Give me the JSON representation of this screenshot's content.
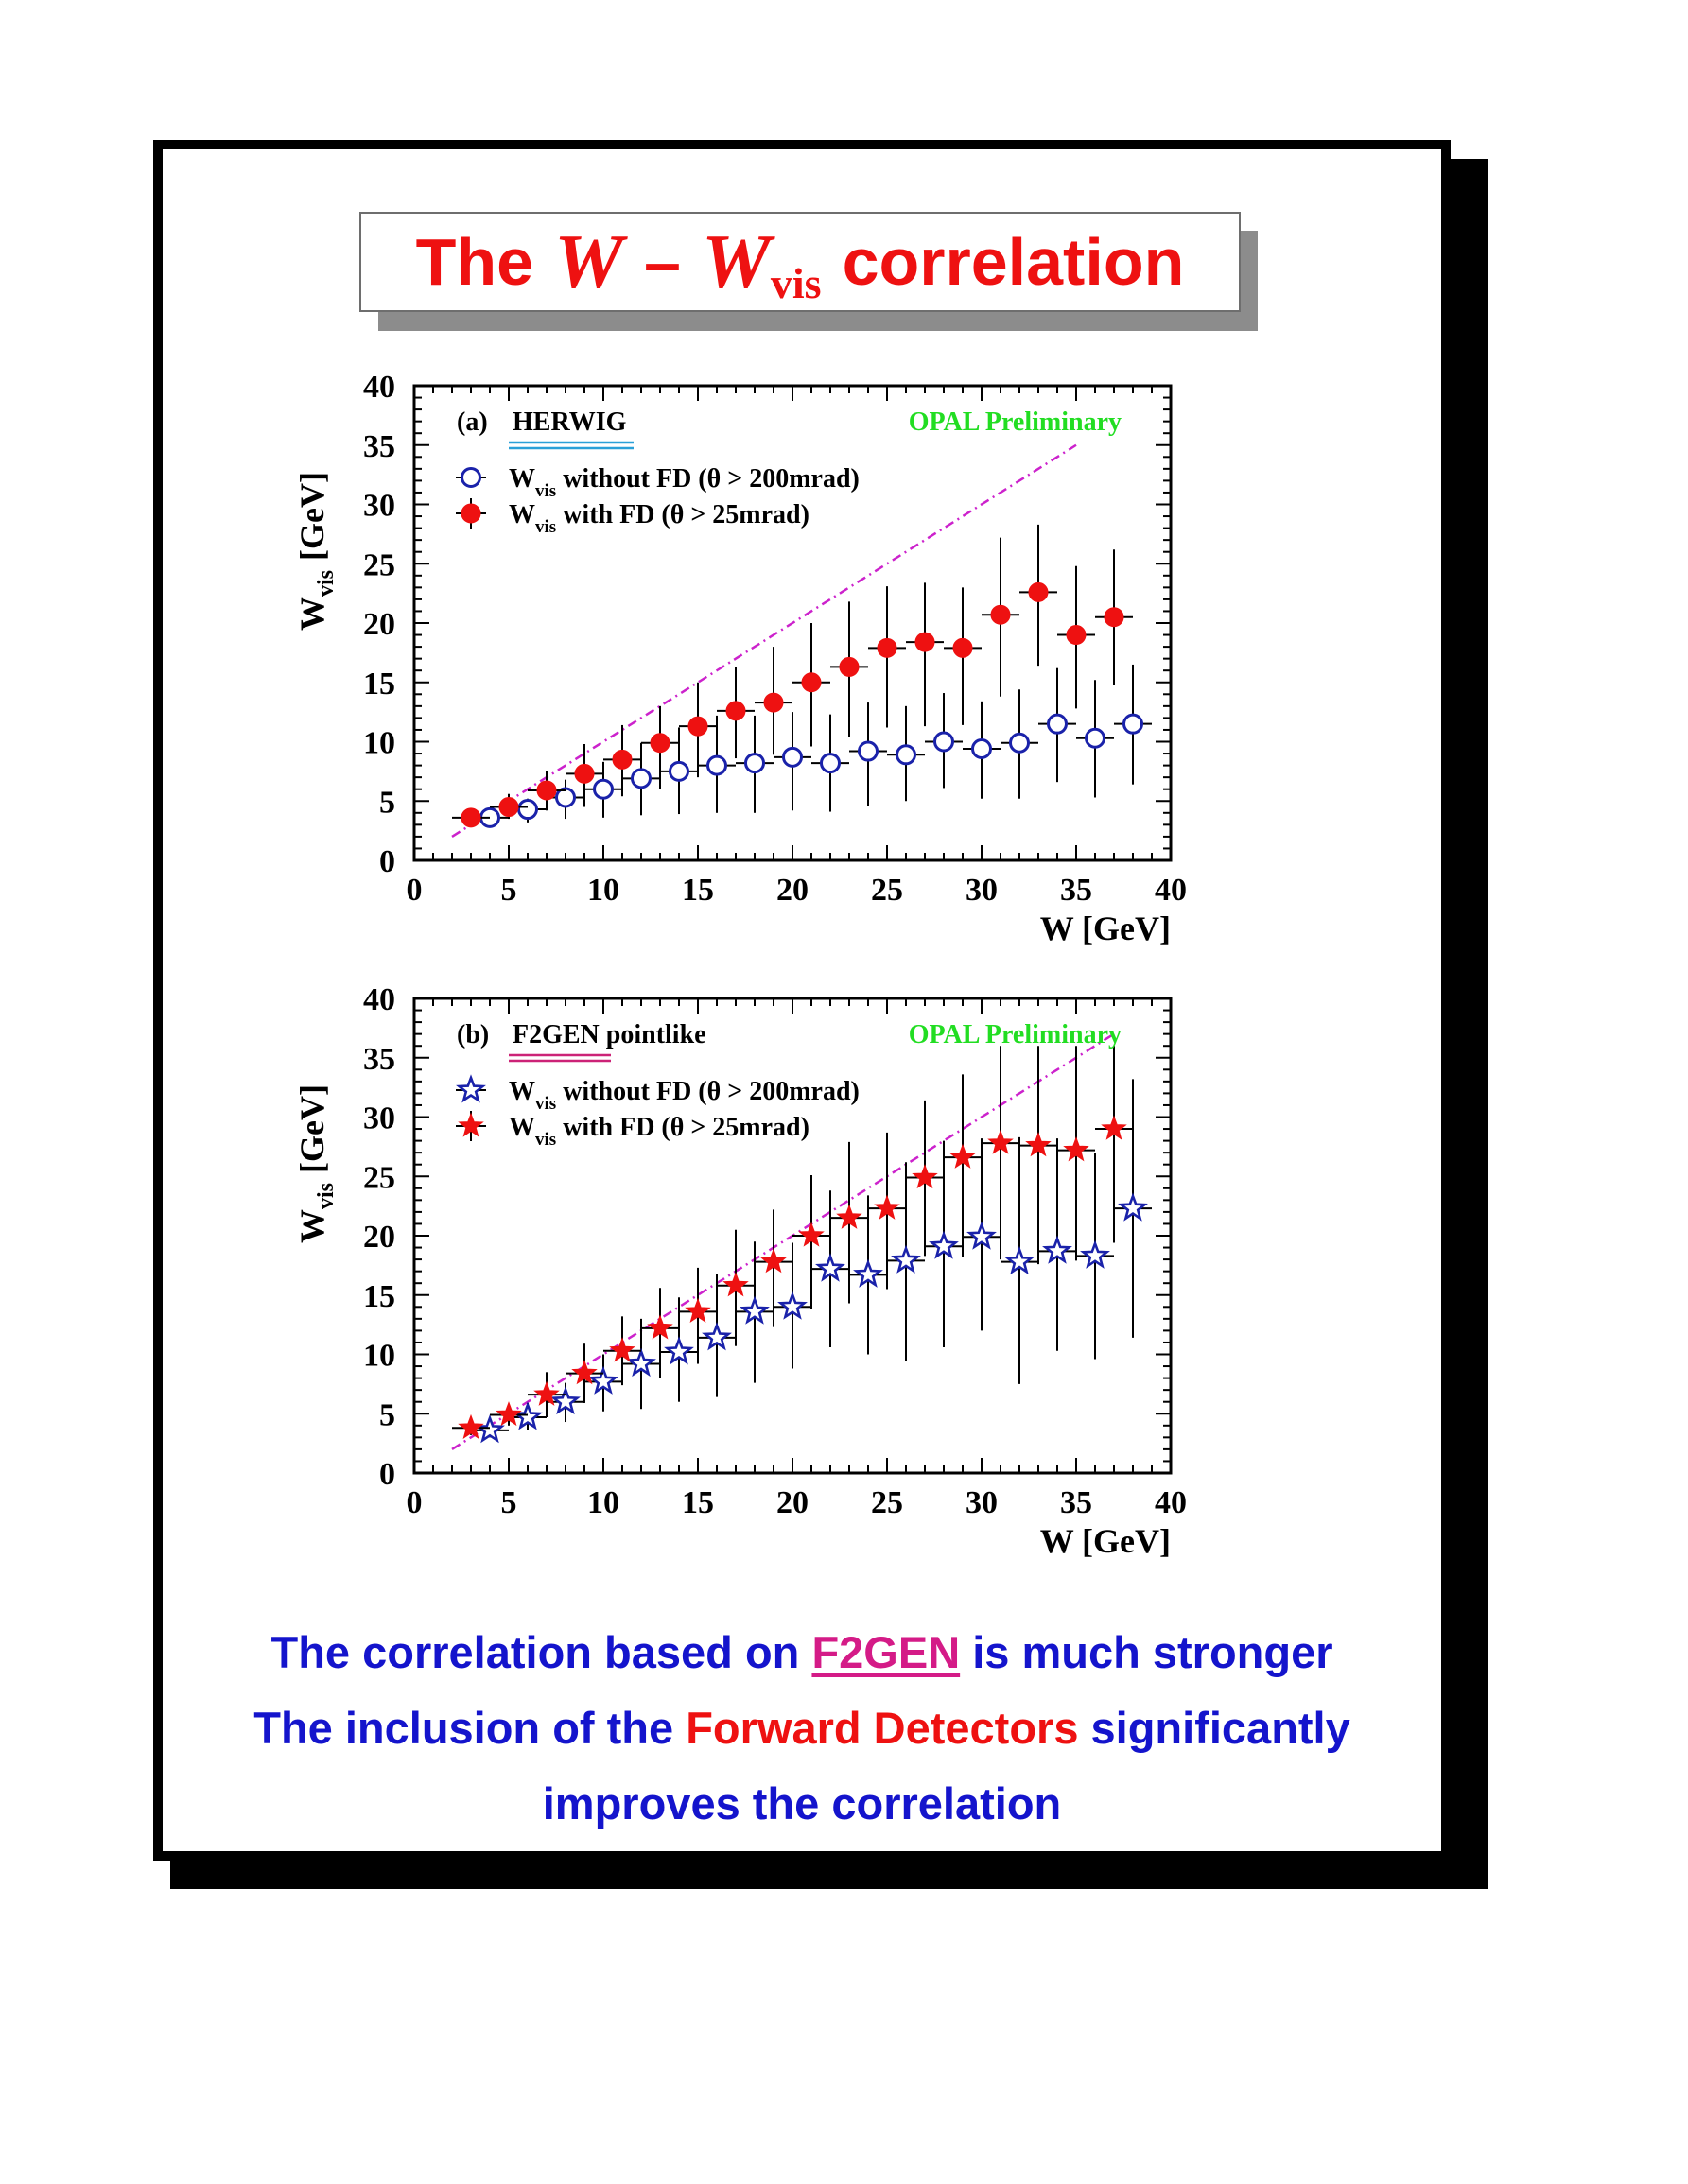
{
  "title": {
    "prefix": "The",
    "var1": "W",
    "dash": "–",
    "var2": "W",
    "sub": "vis",
    "suffix": "correlation",
    "color": "#ee1111"
  },
  "chart_data": [
    {
      "type": "scatter",
      "panel_label": "(a)",
      "generator": "HERWIG",
      "generator_underline_colors": [
        "#2aa0d8",
        "#2aa0d8"
      ],
      "watermark": "OPAL Preliminary",
      "watermark_color": "#22dd22",
      "xlabel": "W  [GeV]",
      "ylabel": "W",
      "ylabel_sub": "vis",
      "ylabel_unit": "[GeV]",
      "xlim": [
        0,
        40
      ],
      "ylim": [
        0,
        40
      ],
      "xticks": [
        0,
        5,
        10,
        15,
        20,
        25,
        30,
        35,
        40
      ],
      "yticks": [
        0,
        5,
        10,
        15,
        20,
        25,
        30,
        35,
        40
      ],
      "diagonal": {
        "from": [
          2,
          2
        ],
        "to": [
          35,
          35
        ],
        "color": "#cc22cc",
        "style": "dash-dot"
      },
      "series": [
        {
          "name": "without FD (θ > 200mrad)",
          "name_main": "W",
          "name_sub": "vis",
          "name_rest": " without FD (θ > 200mrad)",
          "marker": "open-circle",
          "color": "#1a22aa",
          "x": [
            4,
            6,
            8,
            10,
            12,
            14,
            16,
            18,
            20,
            22,
            24,
            26,
            28,
            30,
            32,
            34,
            36,
            38
          ],
          "y": [
            3.6,
            4.3,
            5.3,
            6.0,
            6.9,
            7.5,
            8.0,
            8.2,
            8.7,
            8.2,
            9.2,
            8.9,
            10.0,
            9.4,
            9.9,
            11.5,
            10.3,
            11.5
          ],
          "ylow": [
            3.1,
            3.2,
            3.5,
            3.6,
            3.8,
            3.9,
            4.0,
            4.0,
            4.2,
            4.1,
            4.6,
            5.0,
            6.1,
            5.2,
            5.2,
            6.6,
            5.3,
            6.4
          ],
          "yhigh": [
            4.0,
            5.2,
            6.8,
            8.3,
            9.9,
            11.2,
            12.2,
            12.2,
            12.5,
            12.3,
            13.3,
            13.0,
            14.1,
            13.4,
            14.4,
            16.2,
            15.2,
            16.5
          ]
        },
        {
          "name": "with FD (θ > 25mrad)",
          "name_main": "W",
          "name_sub": "vis",
          "name_rest": " with FD (θ > 25mrad)",
          "marker": "filled-circle",
          "color": "#ee1111",
          "x": [
            3,
            5,
            7,
            9,
            11,
            13,
            15,
            17,
            19,
            21,
            23,
            25,
            27,
            29,
            31,
            33,
            35,
            37
          ],
          "y": [
            3.6,
            4.5,
            5.9,
            7.3,
            8.5,
            9.9,
            11.3,
            12.6,
            13.3,
            15.0,
            16.3,
            17.9,
            18.4,
            17.9,
            20.7,
            22.6,
            19.0,
            20.5
          ],
          "ylow": [
            3.1,
            3.5,
            4.2,
            4.5,
            5.4,
            6.0,
            7.0,
            8.6,
            8.9,
            9.6,
            10.4,
            11.2,
            11.3,
            11.4,
            13.8,
            16.4,
            12.8,
            14.8
          ],
          "yhigh": [
            4.0,
            5.6,
            7.5,
            9.8,
            11.4,
            13.0,
            15.0,
            16.3,
            18.0,
            20.0,
            21.8,
            23.1,
            23.4,
            23.0,
            27.2,
            28.3,
            24.8,
            26.2
          ]
        }
      ]
    },
    {
      "type": "scatter",
      "panel_label": "(b)",
      "generator": "F2GEN",
      "generator_rest": " pointlike",
      "generator_underline_colors": [
        "#cc2277",
        "#cc2277"
      ],
      "watermark": "OPAL Preliminary",
      "watermark_color": "#22dd22",
      "xlabel": "W  [GeV]",
      "ylabel": "W",
      "ylabel_sub": "vis",
      "ylabel_unit": "[GeV]",
      "xlim": [
        0,
        40
      ],
      "ylim": [
        0,
        40
      ],
      "xticks": [
        0,
        5,
        10,
        15,
        20,
        25,
        30,
        35,
        40
      ],
      "yticks": [
        0,
        5,
        10,
        15,
        20,
        25,
        30,
        35,
        40
      ],
      "diagonal": {
        "from": [
          2,
          2
        ],
        "to": [
          37,
          37
        ],
        "color": "#cc22cc",
        "style": "dash-dot"
      },
      "series": [
        {
          "name": "without FD (θ > 200mrad)",
          "name_main": "W",
          "name_sub": "vis",
          "name_rest": " without FD (θ > 200mrad)",
          "marker": "open-star",
          "color": "#1a22aa",
          "x": [
            4,
            6,
            8,
            10,
            12,
            14,
            16,
            18,
            20,
            22,
            24,
            26,
            28,
            30,
            32,
            34,
            36,
            38
          ],
          "y": [
            3.6,
            4.7,
            6.0,
            7.7,
            9.2,
            10.2,
            11.4,
            13.6,
            14.0,
            17.2,
            16.7,
            17.9,
            19.1,
            19.9,
            17.8,
            18.7,
            18.3,
            22.3
          ],
          "ylow": [
            3.0,
            3.6,
            4.3,
            5.2,
            5.4,
            6.0,
            6.4,
            7.6,
            8.8,
            10.6,
            10.0,
            9.4,
            10.6,
            12.0,
            7.5,
            10.3,
            9.6,
            11.4
          ],
          "yhigh": [
            4.2,
            5.9,
            7.6,
            10.0,
            13.0,
            14.8,
            16.8,
            19.5,
            19.4,
            23.8,
            23.4,
            26.2,
            28.0,
            28.2,
            28.3,
            28.2,
            27.0,
            33.2
          ]
        },
        {
          "name": "with FD (θ > 25mrad)",
          "name_main": "W",
          "name_sub": "vis",
          "name_rest": " with FD (θ > 25mrad)",
          "marker": "filled-star",
          "color": "#ee1111",
          "x": [
            3,
            5,
            7,
            9,
            11,
            13,
            15,
            17,
            19,
            21,
            23,
            25,
            27,
            29,
            31,
            33,
            35,
            37
          ],
          "y": [
            3.8,
            4.9,
            6.6,
            8.4,
            10.3,
            12.2,
            13.6,
            15.8,
            17.8,
            20.0,
            21.5,
            22.3,
            24.9,
            26.6,
            27.8,
            27.6,
            27.2,
            29.0
          ],
          "ylow": [
            3.2,
            4.0,
            4.7,
            5.9,
            7.4,
            8.0,
            9.2,
            10.7,
            12.3,
            13.8,
            14.3,
            15.5,
            18.3,
            18.2,
            18.0,
            17.6,
            17.9,
            19.4
          ],
          "yhigh": [
            4.3,
            5.8,
            8.5,
            10.9,
            13.2,
            15.6,
            17.3,
            20.5,
            22.2,
            25.1,
            27.9,
            28.7,
            31.4,
            33.6,
            36.0,
            36.0,
            36.0,
            36.0
          ]
        }
      ]
    }
  ],
  "summary": {
    "line1_pre": "The correlation based on ",
    "line1_highlight": "F2GEN",
    "line1_post": " is much stronger",
    "line2_pre": "The inclusion of the ",
    "line2_highlight": "Forward Detectors",
    "line2_post": " significantly",
    "line3": "improves the correlation"
  }
}
